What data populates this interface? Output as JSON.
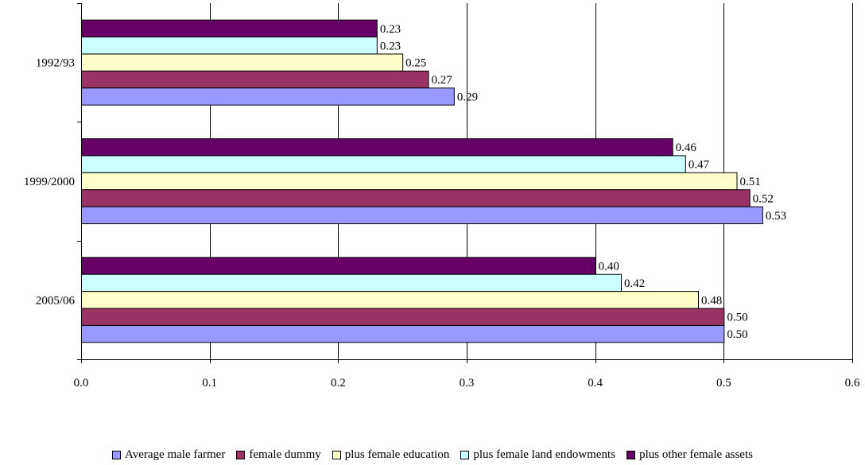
{
  "chart_data": {
    "type": "bar",
    "orientation": "horizontal",
    "categories": [
      "1992/93",
      "1999/2000",
      "2005/06"
    ],
    "series": [
      {
        "name": "Average male farmer",
        "color": "#9999FF",
        "values": [
          0.29,
          0.53,
          0.5
        ],
        "labels": [
          "0.29",
          "0.53",
          "0.50"
        ]
      },
      {
        "name": "female dummy",
        "color": "#993366",
        "values": [
          0.27,
          0.52,
          0.5
        ],
        "labels": [
          "0.27",
          "0.52",
          "0.50"
        ]
      },
      {
        "name": "plus female education",
        "color": "#FFFFCC",
        "values": [
          0.25,
          0.51,
          0.48
        ],
        "labels": [
          "0.25",
          "0.51",
          "0.48"
        ]
      },
      {
        "name": "plus female land endowments",
        "color": "#CCFFFF",
        "values": [
          0.23,
          0.47,
          0.42
        ],
        "labels": [
          "0.23",
          "0.47",
          "0.42"
        ]
      },
      {
        "name": "plus other female assets",
        "color": "#660066",
        "values": [
          0.23,
          0.46,
          0.4
        ],
        "labels": [
          "0.23",
          "0.46",
          "0.40"
        ]
      }
    ],
    "xlim": [
      0,
      0.6
    ],
    "xticks": [
      "0.0",
      "0.1",
      "0.2",
      "0.3",
      "0.4",
      "0.5",
      "0.6"
    ],
    "title": "",
    "xlabel": "",
    "ylabel": "",
    "grid": "vertical",
    "legend_position": "bottom"
  }
}
